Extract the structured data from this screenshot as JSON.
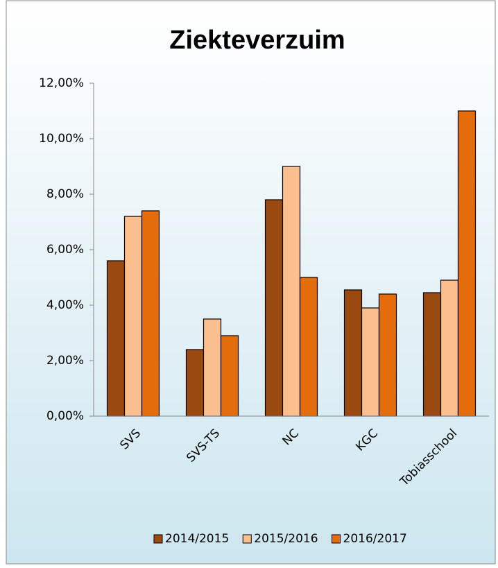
{
  "chart_data": {
    "type": "bar",
    "title": "Ziekteverzuim",
    "categories": [
      "SVS",
      "SVS-TS",
      "NC",
      "KGC",
      "Tobiasschool"
    ],
    "series": [
      {
        "name": "2014/2015",
        "color": "#9a4a10",
        "values": [
          5.6,
          2.4,
          7.8,
          4.55,
          4.45
        ]
      },
      {
        "name": "2015/2016",
        "color": "#fbbf8f",
        "values": [
          7.2,
          3.5,
          9.0,
          3.9,
          4.9
        ]
      },
      {
        "name": "2016/2017",
        "color": "#e46c0a",
        "values": [
          7.4,
          2.9,
          5.0,
          4.4,
          11.0
        ]
      }
    ],
    "ylim": [
      0,
      12
    ],
    "yticks": [
      {
        "value": 0,
        "label": "0,00%"
      },
      {
        "value": 2,
        "label": "2,00%"
      },
      {
        "value": 4,
        "label": "4,00%"
      },
      {
        "value": 6,
        "label": "6,00%"
      },
      {
        "value": 8,
        "label": "8,00%"
      },
      {
        "value": 10,
        "label": "10,00%"
      },
      {
        "value": 12,
        "label": "12,00%"
      }
    ],
    "legend": "bottom"
  }
}
